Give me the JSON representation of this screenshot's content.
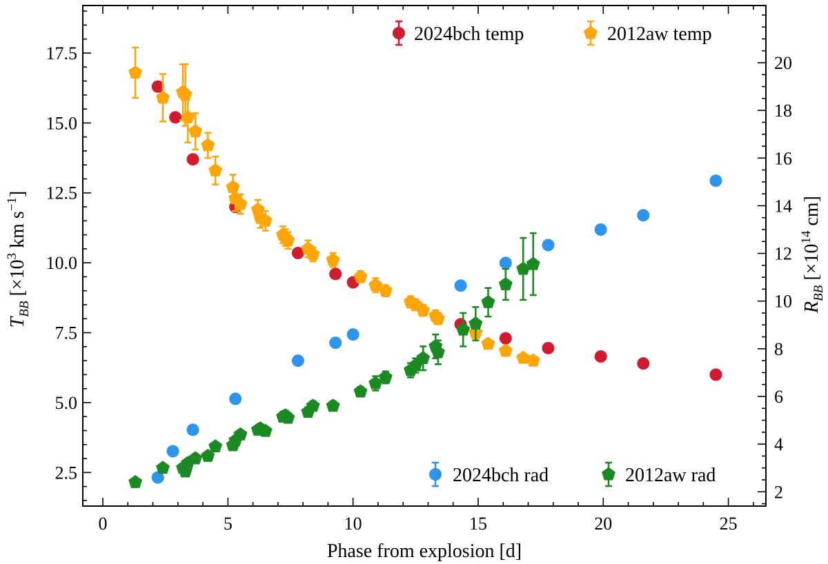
{
  "chart_data": {
    "type": "scatter",
    "xlabel": "Phase from explosion [d]",
    "ylabel_left": {
      "main": "T",
      "sub": "BB",
      "rest": " [×10",
      "sup": "3",
      "rest2": " km s",
      "sup2": "−1",
      "end": "]"
    },
    "ylabel_right": {
      "main": "R",
      "sub": "BB",
      "rest": " [×10",
      "sup": "14",
      "end": " cm]"
    },
    "xlim": [
      -0.8,
      26.5
    ],
    "ylim_left": [
      1.3,
      19.2
    ],
    "ylim_right": [
      1.4,
      22.4
    ],
    "x_ticks": [
      0,
      5,
      10,
      15,
      20,
      25
    ],
    "x_tick_labels": [
      "0",
      "5",
      "10",
      "15",
      "20",
      "25"
    ],
    "yl_ticks": [
      2.5,
      5.0,
      7.5,
      10.0,
      12.5,
      15.0,
      17.5
    ],
    "yl_tick_labels": [
      "2.5",
      "5.0",
      "7.5",
      "10.0",
      "12.5",
      "15.0",
      "17.5"
    ],
    "yr_ticks": [
      2,
      4,
      6,
      8,
      10,
      12,
      14,
      16,
      18,
      20
    ],
    "yr_tick_labels": [
      "2",
      "4",
      "6",
      "8",
      "10",
      "12",
      "14",
      "16",
      "18",
      "20"
    ],
    "legend_upper": {
      "position": "top-right",
      "entries": [
        "2024bch temp",
        "2012aw temp"
      ]
    },
    "legend_lower": {
      "position": "bottom-right",
      "entries": [
        "2024bch rad",
        "2012aw rad"
      ]
    },
    "series": [
      {
        "name": "2024bch temp",
        "axis": "left",
        "marker": "circle",
        "color": "#d11b2f",
        "x": [
          2.2,
          2.9,
          3.6,
          5.3,
          7.8,
          9.3,
          10.0,
          14.3,
          16.1,
          17.8,
          19.9,
          21.6,
          24.5
        ],
        "y": [
          16.3,
          15.2,
          13.7,
          12.0,
          10.35,
          9.6,
          9.3,
          7.8,
          7.3,
          6.95,
          6.65,
          6.4,
          6.0
        ]
      },
      {
        "name": "2012aw temp",
        "axis": "left",
        "marker": "pentagon",
        "color": "#fda60c",
        "x": [
          1.3,
          2.4,
          3.2,
          3.3,
          3.4,
          3.7,
          4.2,
          4.5,
          5.2,
          5.3,
          5.5,
          6.2,
          6.3,
          6.5,
          7.2,
          7.3,
          7.4,
          8.2,
          8.4,
          9.2,
          10.3,
          10.9,
          11.3,
          12.3,
          12.5,
          12.8,
          13.3,
          13.4,
          14.9,
          15.4,
          16.1,
          16.8,
          17.2
        ],
        "y": [
          16.8,
          15.9,
          16.1,
          16.0,
          15.2,
          14.7,
          14.2,
          13.3,
          12.7,
          12.3,
          12.1,
          11.9,
          11.6,
          11.5,
          11.0,
          10.9,
          10.8,
          10.5,
          10.3,
          10.1,
          9.5,
          9.2,
          9.0,
          8.6,
          8.5,
          8.3,
          8.1,
          8.0,
          7.5,
          7.1,
          6.85,
          6.6,
          6.5
        ],
        "yerr": [
          0.9,
          0.85,
          1.0,
          1.1,
          0.9,
          0.65,
          0.45,
          0.5,
          0.45,
          0.45,
          0.35,
          0.35,
          0.35,
          0.35,
          0.3,
          0.3,
          0.3,
          0.3,
          0.25,
          0.25,
          0.2,
          0.25,
          0.2,
          0.2,
          0.2,
          0.2,
          0.2,
          0.2,
          0.2,
          0.15,
          0.15,
          0.15,
          0.15
        ]
      },
      {
        "name": "2024bch rad",
        "axis": "right",
        "marker": "circle",
        "color": "#2f95ea",
        "x": [
          2.2,
          2.8,
          3.6,
          5.3,
          7.8,
          9.3,
          10.0,
          14.3,
          16.1,
          17.8,
          19.9,
          21.6,
          24.5
        ],
        "y": [
          2.6,
          3.7,
          4.6,
          5.9,
          7.5,
          8.25,
          8.6,
          10.65,
          11.6,
          12.35,
          13.0,
          13.6,
          15.05
        ]
      },
      {
        "name": "2012aw rad",
        "axis": "right",
        "marker": "pentagon",
        "color": "#1c8a22",
        "x": [
          1.3,
          2.4,
          3.2,
          3.3,
          3.4,
          3.7,
          4.2,
          4.5,
          5.2,
          5.3,
          5.5,
          6.2,
          6.3,
          6.5,
          7.2,
          7.3,
          7.4,
          8.2,
          8.4,
          9.2,
          10.3,
          10.9,
          11.3,
          12.3,
          12.5,
          12.8,
          13.3,
          13.4,
          14.4,
          14.9,
          15.4,
          16.1,
          16.8,
          17.2
        ],
        "y": [
          2.4,
          3.0,
          3.0,
          2.85,
          3.2,
          3.4,
          3.5,
          3.9,
          3.95,
          4.15,
          4.4,
          4.6,
          4.65,
          4.55,
          5.15,
          5.2,
          5.1,
          5.35,
          5.6,
          5.6,
          6.2,
          6.55,
          6.8,
          7.1,
          7.3,
          7.6,
          8.1,
          7.85,
          8.8,
          9.05,
          9.95,
          10.7,
          11.35,
          11.55
        ],
        "yerr": [
          0.05,
          0.1,
          0.15,
          0.15,
          0.15,
          0.15,
          0.15,
          0.15,
          0.15,
          0.15,
          0.15,
          0.15,
          0.15,
          0.15,
          0.2,
          0.2,
          0.2,
          0.2,
          0.2,
          0.2,
          0.2,
          0.3,
          0.25,
          0.3,
          0.3,
          0.5,
          0.5,
          0.5,
          0.7,
          0.7,
          0.6,
          0.65,
          1.3,
          1.3
        ]
      }
    ]
  }
}
